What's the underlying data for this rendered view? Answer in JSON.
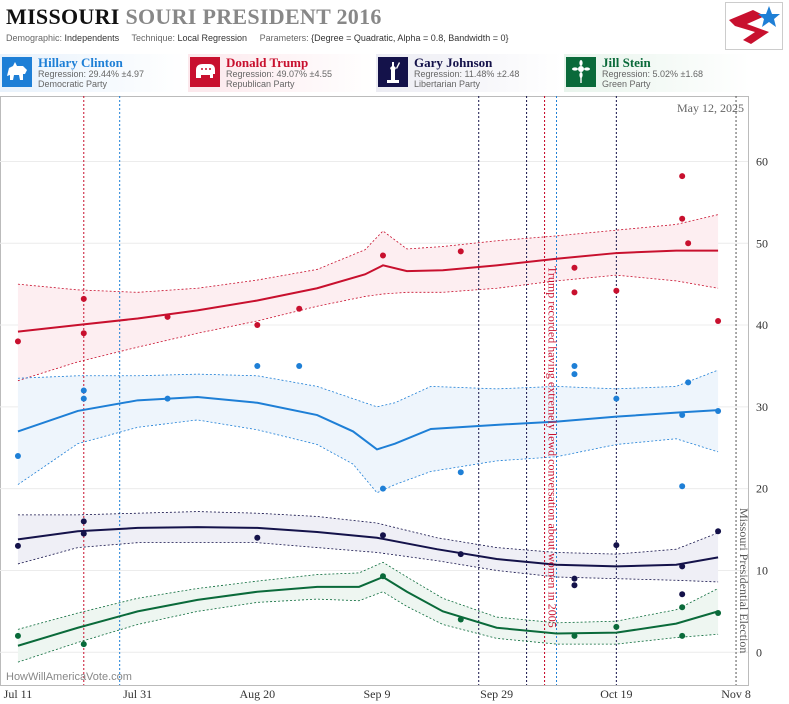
{
  "header": {
    "title_part1": "MISSOURI",
    "title_part2": "SOURI PRESIDENT 2016",
    "demographic_label": "Demographic:",
    "demographic_value": "Independents",
    "technique_label": "Technique:",
    "technique_value": "Local Regression",
    "parameters_label": "Parameters:",
    "parameters_value": "{Degree = Quadratic, Alpha = 0.8, Bandwidth = 0}"
  },
  "candidates": [
    {
      "name": "Hillary Clinton",
      "regression": "Regression: 29.44% ±4.97",
      "party": "Democratic Party",
      "color": "#1e7fd6",
      "icon": "donkey-icon"
    },
    {
      "name": "Donald Trump",
      "regression": "Regression: 49.07% ±4.55",
      "party": "Republican Party",
      "color": "#c8102e",
      "icon": "elephant-icon"
    },
    {
      "name": "Gary Johnson",
      "regression": "Regression: 11.48% ±2.48",
      "party": "Libertarian Party",
      "color": "#14124a",
      "icon": "liberty-statue-icon"
    },
    {
      "name": "Jill Stein",
      "regression": "Regression: 5.02% ±1.68",
      "party": "Green Party",
      "color": "#0a6a3a",
      "icon": "sunflower-icon"
    }
  ],
  "chart_data": {
    "type": "line",
    "date_label": "May 12, 2025",
    "watermark": "HowWillAmericaVote.com",
    "x_ticks": [
      "Jul 11",
      "Jul 31",
      "Aug 20",
      "Sep 9",
      "Sep 29",
      "Oct 19",
      "Nov 8"
    ],
    "x_tick_dates": [
      "2016-07-11",
      "2016-07-31",
      "2016-08-20",
      "2016-09-09",
      "2016-09-29",
      "2016-10-19",
      "2016-11-08"
    ],
    "y_ticks": [
      0,
      10,
      20,
      30,
      40,
      50,
      60
    ],
    "xlim": [
      "2016-07-08",
      "2016-11-10"
    ],
    "ylim": [
      -4,
      68
    ],
    "annotations": [
      {
        "text": "Trump recorded having extremely lewd conversation about women in 2005",
        "date": "2016-10-07",
        "color": "#c8102e"
      },
      {
        "text": "Missouri Presidential Election",
        "date": "2016-11-08",
        "color": "#555555"
      }
    ],
    "vlines": [
      {
        "date": "2016-07-22",
        "color": "#c8102e"
      },
      {
        "date": "2016-07-28",
        "color": "#1e7fd6"
      },
      {
        "date": "2016-09-26",
        "color": "#14124a"
      },
      {
        "date": "2016-10-04",
        "color": "#14124a"
      },
      {
        "date": "2016-10-07",
        "color": "#c8102e"
      },
      {
        "date": "2016-10-09",
        "color": "#1e7fd6"
      },
      {
        "date": "2016-10-19",
        "color": "#14124a"
      }
    ],
    "series": [
      {
        "name": "Donald Trump",
        "color": "#c8102e",
        "band_fill": "#fdeef1",
        "line_x": [
          "2016-07-11",
          "2016-07-21",
          "2016-07-31",
          "2016-08-10",
          "2016-08-20",
          "2016-08-30",
          "2016-09-07",
          "2016-09-10",
          "2016-09-14",
          "2016-09-20",
          "2016-09-29",
          "2016-10-09",
          "2016-10-19",
          "2016-10-29",
          "2016-11-05"
        ],
        "line_y": [
          39.2,
          40.0,
          40.8,
          41.8,
          43.0,
          44.5,
          46.2,
          47.3,
          46.6,
          46.7,
          47.3,
          48.1,
          48.8,
          49.1,
          49.1
        ],
        "upper": [
          45.0,
          44.3,
          44.0,
          44.5,
          45.5,
          46.8,
          49.2,
          51.5,
          49.3,
          49.6,
          50.3,
          50.9,
          51.6,
          52.3,
          53.5
        ],
        "lower": [
          33.2,
          35.5,
          37.3,
          39.0,
          40.5,
          42.3,
          43.5,
          43.8,
          44.0,
          44.0,
          44.5,
          45.4,
          46.1,
          45.4,
          44.5
        ],
        "points_x": [
          "2016-07-11",
          "2016-07-22",
          "2016-07-22",
          "2016-08-05",
          "2016-08-20",
          "2016-08-27",
          "2016-09-10",
          "2016-09-23",
          "2016-10-12",
          "2016-10-12",
          "2016-10-19",
          "2016-10-30",
          "2016-10-30",
          "2016-10-31",
          "2016-11-05"
        ],
        "points_y": [
          38,
          43.2,
          39,
          41,
          40,
          42,
          48.5,
          49,
          47,
          44,
          44.2,
          58.2,
          53,
          50,
          40.5
        ]
      },
      {
        "name": "Hillary Clinton",
        "color": "#1e7fd6",
        "band_fill": "#eef5fc",
        "line_x": [
          "2016-07-11",
          "2016-07-21",
          "2016-07-31",
          "2016-08-10",
          "2016-08-20",
          "2016-08-30",
          "2016-09-05",
          "2016-09-09",
          "2016-09-12",
          "2016-09-18",
          "2016-09-29",
          "2016-10-09",
          "2016-10-19",
          "2016-10-29",
          "2016-11-05"
        ],
        "line_y": [
          27.0,
          29.5,
          30.8,
          31.2,
          30.5,
          29.0,
          27.0,
          24.8,
          25.5,
          27.3,
          27.8,
          28.2,
          28.8,
          29.3,
          29.6
        ],
        "upper": [
          33.5,
          33.8,
          33.8,
          34.0,
          33.8,
          32.5,
          31.0,
          30.0,
          30.5,
          32.5,
          32.2,
          32.5,
          32.2,
          32.5,
          34.5
        ],
        "lower": [
          20.5,
          25.5,
          27.5,
          28.4,
          27.2,
          25.4,
          23.0,
          19.5,
          20.5,
          22.1,
          23.4,
          23.9,
          25.4,
          26.1,
          24.5
        ],
        "points_x": [
          "2016-07-11",
          "2016-07-22",
          "2016-07-22",
          "2016-08-05",
          "2016-08-20",
          "2016-08-27",
          "2016-09-10",
          "2016-09-23",
          "2016-10-12",
          "2016-10-12",
          "2016-10-19",
          "2016-10-30",
          "2016-10-30",
          "2016-10-31",
          "2016-11-05"
        ],
        "points_y": [
          24,
          32,
          31,
          31,
          35,
          35,
          20,
          22,
          35,
          34,
          31,
          20.3,
          29,
          33,
          29.5
        ]
      },
      {
        "name": "Gary Johnson",
        "color": "#14124a",
        "band_fill": "#efeff6",
        "line_x": [
          "2016-07-11",
          "2016-07-21",
          "2016-07-31",
          "2016-08-10",
          "2016-08-20",
          "2016-08-30",
          "2016-09-09",
          "2016-09-19",
          "2016-09-29",
          "2016-10-09",
          "2016-10-19",
          "2016-10-29",
          "2016-11-05"
        ],
        "line_y": [
          13.8,
          14.8,
          15.2,
          15.3,
          15.2,
          14.7,
          14.0,
          12.6,
          11.4,
          10.7,
          10.5,
          10.7,
          11.6
        ],
        "upper": [
          16.8,
          16.8,
          17.0,
          17.2,
          17.0,
          16.6,
          15.8,
          14.0,
          12.8,
          12.2,
          12.0,
          12.6,
          14.6
        ],
        "lower": [
          10.8,
          12.8,
          13.4,
          13.4,
          13.4,
          12.8,
          12.2,
          11.2,
          10.0,
          9.2,
          9.0,
          8.8,
          8.6
        ],
        "points_x": [
          "2016-07-11",
          "2016-07-22",
          "2016-07-22",
          "2016-08-20",
          "2016-09-10",
          "2016-09-23",
          "2016-10-12",
          "2016-10-12",
          "2016-10-19",
          "2016-10-30",
          "2016-10-30",
          "2016-11-05"
        ],
        "points_y": [
          13,
          16,
          14.5,
          14,
          14.3,
          12,
          9,
          8.2,
          13.1,
          10.5,
          7.1,
          14.8
        ]
      },
      {
        "name": "Jill Stein",
        "color": "#0a6a3a",
        "band_fill": "#eef6f1",
        "line_x": [
          "2016-07-11",
          "2016-07-21",
          "2016-07-31",
          "2016-08-10",
          "2016-08-20",
          "2016-08-30",
          "2016-09-06",
          "2016-09-10",
          "2016-09-14",
          "2016-09-20",
          "2016-09-29",
          "2016-10-09",
          "2016-10-19",
          "2016-10-29",
          "2016-11-05"
        ],
        "line_y": [
          0.8,
          3.0,
          5.0,
          6.4,
          7.4,
          8.0,
          8.0,
          9.2,
          7.4,
          5.0,
          3.0,
          2.3,
          2.4,
          3.5,
          5.0
        ],
        "upper": [
          2.8,
          4.8,
          6.6,
          7.8,
          8.7,
          9.5,
          9.7,
          11.0,
          9.2,
          6.6,
          4.3,
          3.6,
          3.8,
          5.2,
          7.8
        ],
        "lower": [
          -1.2,
          1.2,
          3.4,
          5.0,
          6.1,
          6.5,
          6.3,
          7.4,
          5.6,
          3.4,
          1.7,
          1.0,
          1.0,
          1.8,
          2.2
        ],
        "points_x": [
          "2016-07-11",
          "2016-07-22",
          "2016-09-10",
          "2016-09-23",
          "2016-10-12",
          "2016-10-19",
          "2016-10-30",
          "2016-10-30",
          "2016-11-05"
        ],
        "points_y": [
          2,
          1,
          9.3,
          4,
          2,
          3.1,
          2,
          5.5,
          4.8
        ]
      }
    ]
  }
}
